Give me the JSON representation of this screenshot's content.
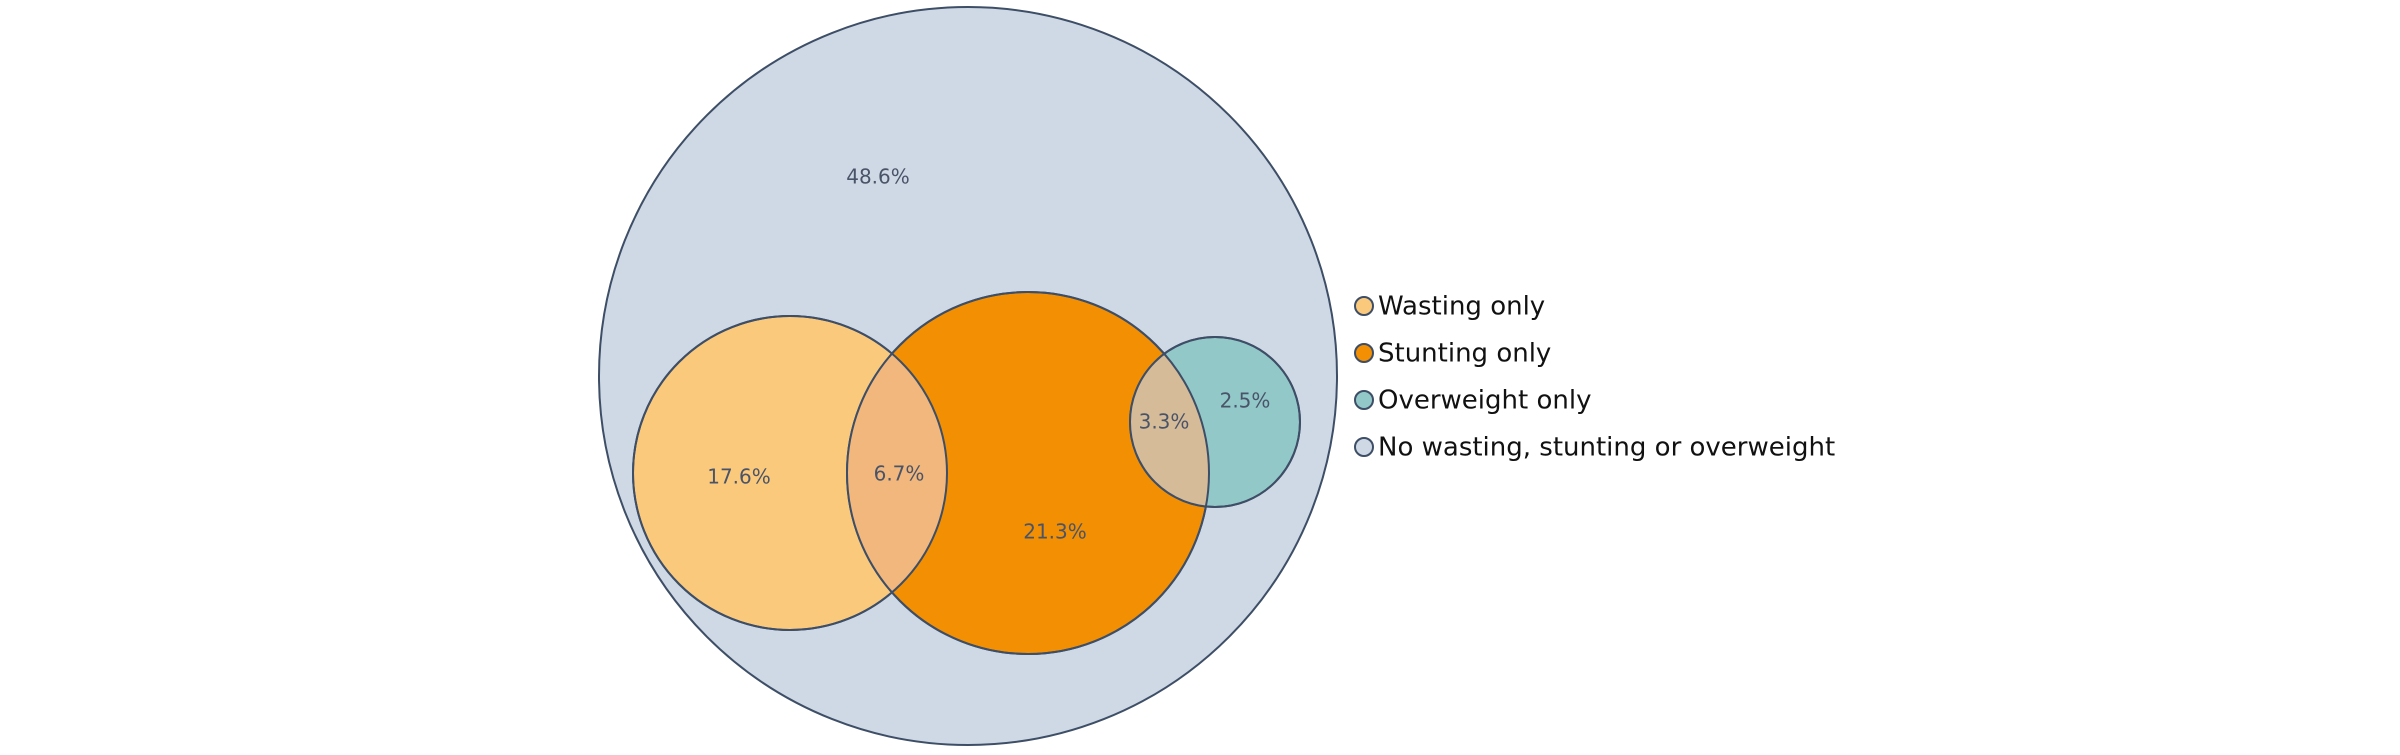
{
  "diagram": {
    "type": "euler",
    "outline_color": "#3d4e66",
    "sets": [
      {
        "id": "none",
        "color": "#cfd9e5"
      },
      {
        "id": "wasting",
        "color": "#fbc97c"
      },
      {
        "id": "stunting",
        "color": "#f28f02"
      },
      {
        "id": "overweight",
        "color": "#93c8c9"
      }
    ],
    "overlap_colors": {
      "wasting_stunting": "#f1b77c",
      "stunting_overweight": "#d6bb98"
    },
    "region_labels": {
      "none": "48.6%",
      "wasting_only": "17.6%",
      "wasting_stunting": "6.7%",
      "stunting_only": "21.3%",
      "stunting_overweight": "3.3%",
      "overweight_only": "2.5%"
    }
  },
  "legend": [
    {
      "label": "Wasting only",
      "color": "#fbc97c"
    },
    {
      "label": "Stunting only",
      "color": "#f28f02"
    },
    {
      "label": "Overweight only",
      "color": "#93c8c9"
    },
    {
      "label": "No wasting, stunting or overweight",
      "color": "#cfd9e5"
    }
  ]
}
